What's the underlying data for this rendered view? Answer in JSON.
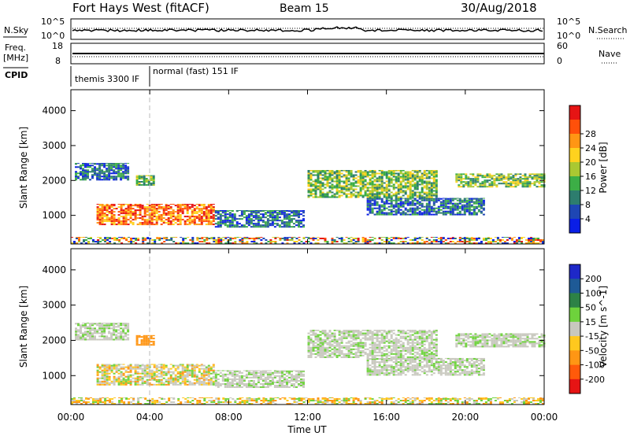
{
  "header": {
    "title": "Fort Hays West (fitACF)",
    "beam": "Beam 15",
    "date": "30/Aug/2018"
  },
  "noise_panel": {
    "left_label": "N.Sky",
    "right_label": "N.Search",
    "left_ticks": [
      "10^5",
      "10^0"
    ],
    "right_ticks": [
      "10^5",
      "10^0"
    ]
  },
  "freq_panel": {
    "left_label_1": "Freq.",
    "left_label_2": "[MHz]",
    "right_label": "Nave",
    "left_ticks": [
      "18",
      "8"
    ],
    "right_ticks": [
      "60",
      "0"
    ]
  },
  "cpid": {
    "label": "CPID",
    "modes": [
      {
        "name": "themis 3300 IF",
        "start_hour": 0
      },
      {
        "name": "normal (fast) 151 IF",
        "start_hour": 4.0
      }
    ]
  },
  "chart_data": [
    {
      "type": "heatmap",
      "panel": "power",
      "ylabel": "Slant Range [km]",
      "xlim": [
        0,
        24
      ],
      "ylim": [
        180,
        4600
      ],
      "y_ticks": [
        "1000",
        "2000",
        "3000",
        "4000"
      ],
      "colorbar": {
        "label": "Power [dB]",
        "ticks": [
          "4",
          "8",
          "12",
          "16",
          "20",
          "24",
          "28"
        ],
        "colors": [
          "#0a1ee6",
          "#1e46b4",
          "#2d7d6e",
          "#3cae46",
          "#aac832",
          "#ffd21e",
          "#ff9614",
          "#ff500a",
          "#e61414"
        ]
      },
      "regions": [
        {
          "t0": 1.3,
          "t1": 7.3,
          "r0": 720,
          "r1": 1330,
          "level": "high"
        },
        {
          "t0": 7.3,
          "t1": 11.8,
          "r0": 650,
          "r1": 1150,
          "level": "low"
        },
        {
          "t0": 0.2,
          "t1": 2.9,
          "r0": 2000,
          "r1": 2500,
          "level": "low"
        },
        {
          "t0": 3.3,
          "t1": 4.2,
          "r0": 1850,
          "r1": 2150,
          "level": "mid"
        },
        {
          "t0": 12.0,
          "t1": 18.5,
          "r0": 1500,
          "r1": 2300,
          "level": "mid"
        },
        {
          "t0": 15.0,
          "t1": 21.0,
          "r0": 1000,
          "r1": 1500,
          "level": "low"
        },
        {
          "t0": 19.5,
          "t1": 24.0,
          "r0": 1800,
          "r1": 2200,
          "level": "mid"
        },
        {
          "t0": 0.0,
          "t1": 24.0,
          "r0": 180,
          "r1": 380,
          "level": "ground"
        }
      ]
    },
    {
      "type": "heatmap",
      "panel": "velocity",
      "ylabel": "Slant Range [km]",
      "xlim": [
        0,
        24
      ],
      "ylim": [
        180,
        4600
      ],
      "y_ticks": [
        "1000",
        "2000",
        "3000",
        "4000"
      ],
      "colorbar": {
        "label": "Velocity [m s^-1]",
        "ticks": [
          "200",
          "100",
          "50",
          "15",
          "-15",
          "-50",
          "-100",
          "-200"
        ],
        "colors": [
          "#1e28c8",
          "#1e5a96",
          "#2d8246",
          "#6ed23c",
          "#c8c8be",
          "#ffc81e",
          "#ff9614",
          "#ff5a0a",
          "#e61414"
        ]
      },
      "regions": [
        {
          "t0": 1.3,
          "t1": 7.3,
          "r0": 720,
          "r1": 1330,
          "level": "mixed"
        },
        {
          "t0": 7.3,
          "t1": 11.8,
          "r0": 650,
          "r1": 1150,
          "level": "slow"
        },
        {
          "t0": 0.2,
          "t1": 2.9,
          "r0": 2000,
          "r1": 2500,
          "level": "slow"
        },
        {
          "t0": 3.3,
          "t1": 4.2,
          "r0": 1850,
          "r1": 2150,
          "level": "away"
        },
        {
          "t0": 12.0,
          "t1": 18.5,
          "r0": 1500,
          "r1": 2300,
          "level": "slow"
        },
        {
          "t0": 15.0,
          "t1": 21.0,
          "r0": 1000,
          "r1": 1500,
          "level": "slow"
        },
        {
          "t0": 19.5,
          "t1": 24.0,
          "r0": 1800,
          "r1": 2200,
          "level": "slow"
        },
        {
          "t0": 0.0,
          "t1": 24.0,
          "r0": 180,
          "r1": 380,
          "level": "ground"
        }
      ]
    }
  ],
  "x_axis": {
    "label": "Time UT",
    "ticks": [
      "00:00",
      "04:00",
      "08:00",
      "12:00",
      "16:00",
      "20:00",
      "00:00"
    ]
  }
}
